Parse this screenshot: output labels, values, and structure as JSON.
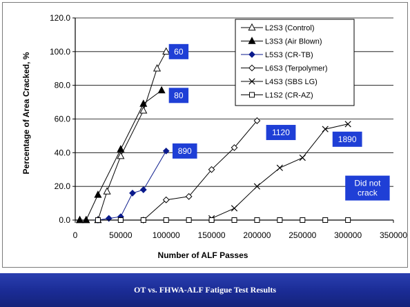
{
  "footer": {
    "title": "OT vs. FHWA-ALF Fatigue Test Results"
  },
  "colors": {
    "label_box": "#1f3fd6",
    "footer": "#1f33a8",
    "line": "#000000",
    "diamond_fill": "#0a1a8c"
  },
  "chart_data": {
    "type": "line",
    "xlabel": "Number of ALF Passes",
    "ylabel": "Percentage of Area Cracked, %",
    "xlim": [
      0,
      350000
    ],
    "ylim": [
      0,
      120
    ],
    "x_ticks": [
      "0",
      "50000",
      "100000",
      "150000",
      "200000",
      "250000",
      "300000",
      "350000"
    ],
    "y_ticks": [
      "0.0",
      "20.0",
      "40.0",
      "60.0",
      "80.0",
      "100.0",
      "120.0"
    ],
    "grid": "horizontal",
    "legend_position": "top-right",
    "series": [
      {
        "name": "L2S3 (Control)",
        "marker": "triangle-open",
        "color": "#000000",
        "x": [
          5000,
          12000,
          25000,
          35000,
          50000,
          75000,
          90000,
          100000
        ],
        "y": [
          0,
          0,
          0,
          17,
          38,
          65,
          90,
          100
        ]
      },
      {
        "name": "L3S3 (Air Blown)",
        "marker": "triangle-filled",
        "color": "#000000",
        "x": [
          5000,
          12000,
          25000,
          50000,
          75000,
          95000
        ],
        "y": [
          0,
          0,
          15,
          42,
          69,
          77
        ]
      },
      {
        "name": "L5S3 (CR-TB)",
        "marker": "diamond-filled",
        "color": "#0a1a8c",
        "x": [
          25000,
          37000,
          50000,
          63000,
          75000,
          100000
        ],
        "y": [
          0,
          1,
          2,
          16,
          18,
          41
        ]
      },
      {
        "name": "L6S3 (Terpolymer)",
        "marker": "diamond-open",
        "color": "#000000",
        "x": [
          75000,
          100000,
          125000,
          150000,
          175000,
          200000
        ],
        "y": [
          0,
          12,
          14,
          30,
          43,
          59
        ]
      },
      {
        "name": "L4S3 (SBS LG)",
        "marker": "x",
        "color": "#000000",
        "x": [
          150000,
          175000,
          200000,
          225000,
          250000,
          275000,
          300000
        ],
        "y": [
          1,
          7,
          20,
          31,
          37,
          54,
          57
        ]
      },
      {
        "name": "L1S2 (CR-AZ)",
        "marker": "square-open",
        "color": "#000000",
        "x": [
          25000,
          50000,
          75000,
          100000,
          125000,
          150000,
          175000,
          200000,
          225000,
          250000,
          275000,
          300000
        ],
        "y": [
          0,
          0,
          0,
          0,
          0,
          0,
          0,
          0,
          0,
          0,
          0,
          0
        ]
      }
    ],
    "annotations": [
      {
        "text": "60",
        "x": 103000,
        "y": 100
      },
      {
        "text": "80",
        "x": 103000,
        "y": 74
      },
      {
        "text": "890",
        "x": 107000,
        "y": 41
      },
      {
        "text": "1120",
        "x": 210000,
        "y": 52
      },
      {
        "text": "1890",
        "x": 283000,
        "y": 48
      },
      {
        "text": "Did not\ncrack",
        "x": 297000,
        "y": 19
      }
    ]
  }
}
